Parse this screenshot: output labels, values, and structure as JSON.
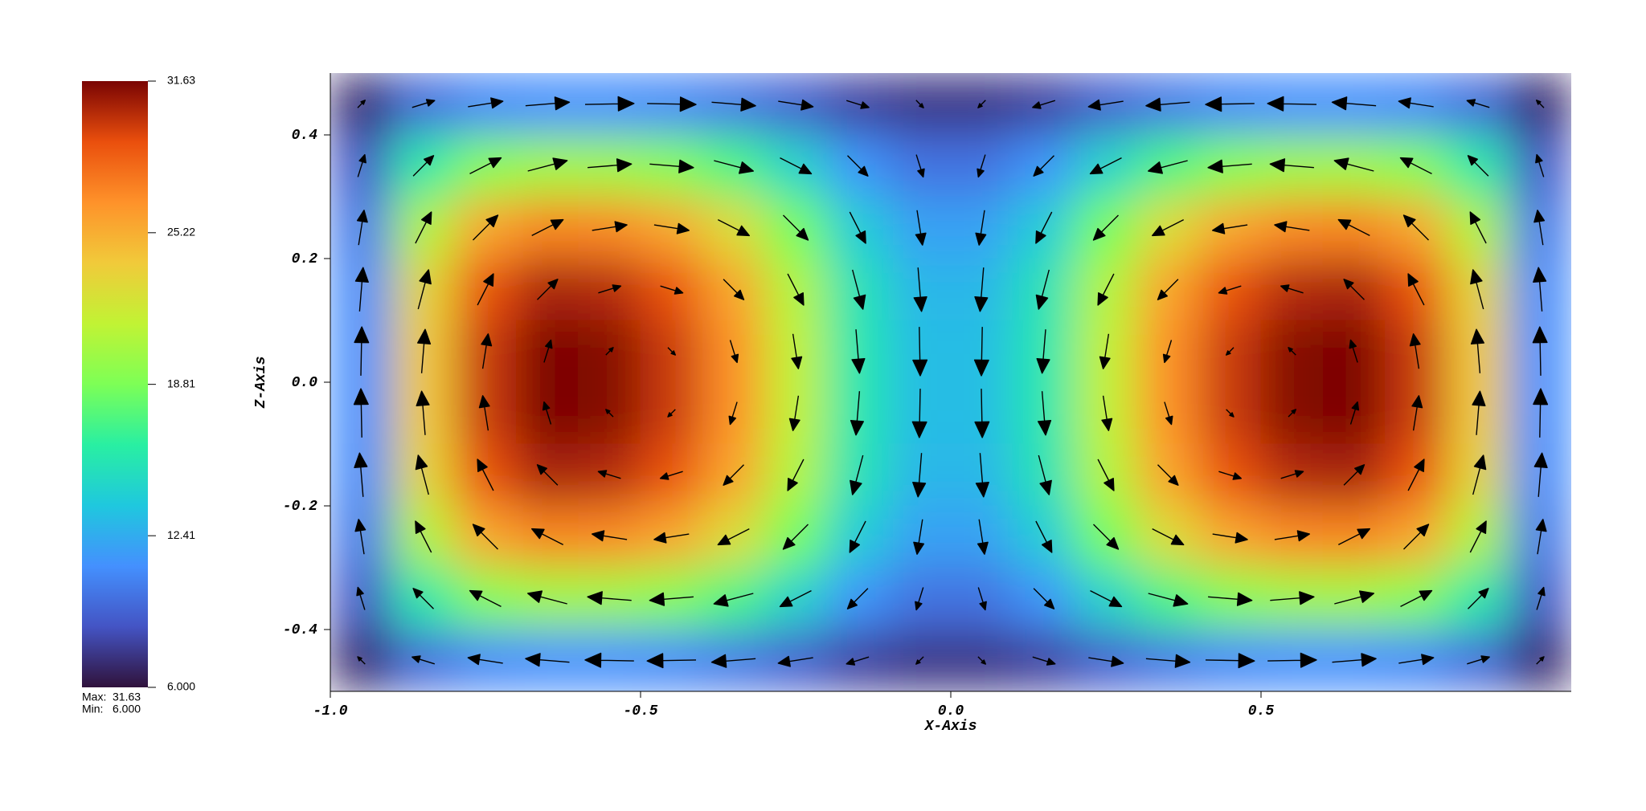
{
  "chart_data": {
    "type": "heatmap",
    "xlabel": "X-Axis",
    "ylabel": "Z-Axis",
    "xlim": [
      -1,
      1
    ],
    "ylim": [
      -0.5,
      0.5
    ],
    "xticks": [
      {
        "value": -1,
        "label": "-1.0"
      },
      -0.5,
      {
        "value": 0,
        "label": "0.0"
      },
      0.5
    ],
    "yticks": [
      0.4,
      0.2,
      {
        "value": 0,
        "label": "0.0"
      },
      -0.2,
      -0.4
    ],
    "x": [
      -0.95,
      -0.85,
      -0.75,
      -0.65,
      -0.55,
      -0.45,
      -0.35,
      -0.25,
      -0.15,
      -0.05,
      0.05,
      0.15,
      0.25,
      0.35,
      0.45,
      0.55,
      0.65,
      0.75,
      0.85,
      0.95
    ],
    "y": [
      0.45,
      0.35,
      0.25,
      0.15,
      0.05,
      -0.05,
      -0.15,
      -0.25,
      -0.35,
      -0.45
    ],
    "z": [
      [
        7.0,
        9.6,
        10.8,
        11.1,
        11.1,
        10.8,
        10.1,
        9.1,
        7.9,
        7.4,
        7.4,
        7.9,
        9.1,
        10.1,
        10.8,
        11.1,
        11.1,
        10.8,
        9.6,
        7.0
      ],
      [
        8.8,
        15.9,
        19.1,
        20.1,
        20.0,
        19.1,
        17.3,
        14.5,
        11.4,
        9.9,
        9.9,
        11.4,
        14.5,
        17.3,
        19.1,
        20.0,
        20.1,
        19.1,
        15.9,
        8.8
      ],
      [
        10.2,
        20.7,
        25.6,
        27.0,
        26.8,
        25.6,
        22.8,
        18.6,
        14.0,
        11.9,
        11.9,
        14.0,
        18.6,
        22.8,
        25.6,
        26.8,
        27.0,
        25.6,
        20.7,
        10.2
      ],
      [
        10.9,
        23.2,
        28.9,
        30.6,
        30.3,
        28.9,
        25.7,
        20.8,
        15.4,
        12.9,
        12.9,
        15.4,
        20.8,
        25.7,
        28.9,
        30.3,
        30.6,
        28.9,
        23.2,
        10.9
      ],
      [
        11.1,
        23.9,
        29.8,
        31.6,
        31.4,
        29.8,
        26.5,
        21.4,
        15.7,
        13.2,
        13.2,
        15.7,
        21.4,
        26.5,
        29.8,
        31.4,
        31.6,
        29.8,
        23.9,
        11.1
      ],
      [
        11.1,
        23.9,
        29.8,
        31.6,
        31.4,
        29.8,
        26.5,
        21.4,
        15.7,
        13.2,
        13.2,
        15.7,
        21.4,
        26.5,
        29.8,
        31.4,
        31.6,
        29.8,
        23.9,
        11.1
      ],
      [
        10.9,
        23.2,
        28.9,
        30.6,
        30.3,
        28.9,
        25.7,
        20.8,
        15.4,
        12.9,
        12.9,
        15.4,
        20.8,
        25.7,
        28.9,
        30.3,
        30.6,
        28.9,
        23.2,
        10.9
      ],
      [
        10.2,
        20.7,
        25.6,
        27.0,
        26.8,
        25.6,
        22.8,
        18.6,
        14.0,
        11.9,
        11.9,
        14.0,
        18.6,
        22.8,
        25.6,
        26.8,
        27.0,
        25.6,
        20.7,
        10.2
      ],
      [
        8.8,
        15.9,
        19.1,
        20.1,
        20.0,
        19.1,
        17.3,
        14.5,
        11.4,
        9.9,
        9.9,
        11.4,
        14.5,
        17.3,
        19.1,
        20.0,
        20.1,
        19.1,
        15.9,
        8.8
      ],
      [
        7.0,
        9.6,
        10.8,
        11.1,
        11.1,
        10.8,
        10.1,
        9.1,
        7.9,
        7.4,
        7.4,
        7.9,
        9.1,
        10.1,
        10.8,
        11.1,
        11.1,
        10.8,
        9.6,
        7.0
      ]
    ],
    "vectors": {
      "color": "#000000",
      "u": [
        [
          0.15,
          0.45,
          0.7,
          0.88,
          0.98,
          0.98,
          0.88,
          0.7,
          0.45,
          0.15,
          -0.15,
          -0.45,
          -0.7,
          -0.88,
          -0.98,
          -0.98,
          -0.88,
          -0.7,
          -0.45,
          -0.15
        ],
        [
          0.14,
          0.41,
          0.63,
          0.79,
          0.88,
          0.88,
          0.79,
          0.63,
          0.41,
          0.14,
          -0.14,
          -0.41,
          -0.63,
          -0.79,
          -0.88,
          -0.88,
          -0.79,
          -0.63,
          -0.41,
          -0.14
        ],
        [
          0.11,
          0.32,
          0.5,
          0.63,
          0.7,
          0.7,
          0.63,
          0.5,
          0.32,
          0.11,
          -0.11,
          -0.32,
          -0.5,
          -0.63,
          -0.7,
          -0.7,
          -0.63,
          -0.5,
          -0.32,
          -0.11
        ],
        [
          0.07,
          0.21,
          0.32,
          0.41,
          0.45,
          0.45,
          0.41,
          0.32,
          0.21,
          0.07,
          -0.07,
          -0.21,
          -0.32,
          -0.41,
          -0.45,
          -0.45,
          -0.41,
          -0.32,
          -0.21,
          -0.07
        ],
        [
          0.02,
          0.07,
          0.11,
          0.14,
          0.15,
          0.15,
          0.14,
          0.11,
          0.07,
          0.02,
          -0.02,
          -0.07,
          -0.11,
          -0.14,
          -0.15,
          -0.15,
          -0.14,
          -0.11,
          -0.07,
          -0.02
        ],
        [
          -0.02,
          -0.07,
          -0.11,
          -0.14,
          -0.15,
          -0.15,
          -0.14,
          -0.11,
          -0.07,
          -0.02,
          0.02,
          0.07,
          0.11,
          0.14,
          0.15,
          0.15,
          0.14,
          0.11,
          0.07,
          0.02
        ],
        [
          -0.07,
          -0.21,
          -0.32,
          -0.41,
          -0.45,
          -0.45,
          -0.41,
          -0.32,
          -0.21,
          -0.07,
          0.07,
          0.21,
          0.32,
          0.41,
          0.45,
          0.45,
          0.41,
          0.32,
          0.21,
          0.07
        ],
        [
          -0.11,
          -0.32,
          -0.5,
          -0.63,
          -0.7,
          -0.7,
          -0.63,
          -0.5,
          -0.32,
          -0.11,
          0.11,
          0.32,
          0.5,
          0.63,
          0.7,
          0.7,
          0.63,
          0.5,
          0.32,
          0.11
        ],
        [
          -0.14,
          -0.41,
          -0.63,
          -0.79,
          -0.88,
          -0.88,
          -0.79,
          -0.63,
          -0.41,
          -0.14,
          0.14,
          0.41,
          0.63,
          0.79,
          0.88,
          0.88,
          0.79,
          0.63,
          0.41,
          0.14
        ],
        [
          -0.15,
          -0.45,
          -0.7,
          -0.88,
          -0.98,
          -0.98,
          -0.88,
          -0.7,
          -0.45,
          -0.15,
          0.15,
          0.45,
          0.7,
          0.88,
          0.98,
          0.98,
          0.88,
          0.7,
          0.45,
          0.15
        ]
      ],
      "w": [
        [
          0.15,
          0.14,
          0.11,
          0.07,
          0.02,
          -0.02,
          -0.07,
          -0.11,
          -0.14,
          -0.15,
          -0.15,
          -0.14,
          -0.11,
          -0.07,
          -0.02,
          0.02,
          0.07,
          0.11,
          0.14,
          0.15
        ],
        [
          0.45,
          0.41,
          0.32,
          0.21,
          0.07,
          -0.07,
          -0.21,
          -0.32,
          -0.41,
          -0.45,
          -0.45,
          -0.41,
          -0.32,
          -0.21,
          -0.07,
          0.07,
          0.21,
          0.32,
          0.41,
          0.45
        ],
        [
          0.7,
          0.63,
          0.5,
          0.32,
          0.11,
          -0.11,
          -0.32,
          -0.5,
          -0.63,
          -0.7,
          -0.7,
          -0.63,
          -0.5,
          -0.32,
          -0.11,
          0.11,
          0.32,
          0.5,
          0.63,
          0.7
        ],
        [
          0.88,
          0.79,
          0.63,
          0.41,
          0.14,
          -0.14,
          -0.41,
          -0.63,
          -0.79,
          -0.88,
          -0.88,
          -0.79,
          -0.63,
          -0.41,
          -0.14,
          0.14,
          0.41,
          0.63,
          0.79,
          0.88
        ],
        [
          0.98,
          0.88,
          0.7,
          0.45,
          0.15,
          -0.15,
          -0.45,
          -0.7,
          -0.88,
          -0.98,
          -0.98,
          -0.88,
          -0.7,
          -0.45,
          -0.15,
          0.15,
          0.45,
          0.7,
          0.88,
          0.98
        ],
        [
          0.98,
          0.88,
          0.7,
          0.45,
          0.15,
          -0.15,
          -0.45,
          -0.7,
          -0.88,
          -0.98,
          -0.98,
          -0.88,
          -0.7,
          -0.45,
          -0.15,
          0.15,
          0.45,
          0.7,
          0.88,
          0.98
        ],
        [
          0.88,
          0.79,
          0.63,
          0.41,
          0.14,
          -0.14,
          -0.41,
          -0.63,
          -0.79,
          -0.88,
          -0.88,
          -0.79,
          -0.63,
          -0.41,
          -0.14,
          0.14,
          0.41,
          0.63,
          0.79,
          0.88
        ],
        [
          0.7,
          0.63,
          0.5,
          0.32,
          0.11,
          -0.11,
          -0.32,
          -0.5,
          -0.63,
          -0.7,
          -0.7,
          -0.63,
          -0.5,
          -0.32,
          -0.11,
          0.11,
          0.32,
          0.5,
          0.63,
          0.7
        ],
        [
          0.45,
          0.41,
          0.32,
          0.21,
          0.07,
          -0.07,
          -0.21,
          -0.32,
          -0.41,
          -0.45,
          -0.45,
          -0.41,
          -0.32,
          -0.21,
          -0.07,
          0.07,
          0.21,
          0.32,
          0.41,
          0.45
        ],
        [
          0.15,
          0.14,
          0.11,
          0.07,
          0.02,
          -0.02,
          -0.07,
          -0.11,
          -0.14,
          -0.15,
          -0.15,
          -0.14,
          -0.11,
          -0.07,
          -0.02,
          0.02,
          0.07,
          0.11,
          0.14,
          0.15
        ]
      ]
    },
    "colorbar": {
      "colormap": [
        "#30123b",
        "#4454c4",
        "#4490fe",
        "#1fc8de",
        "#29efa2",
        "#7dff56",
        "#c1f334",
        "#f1ca3a",
        "#fe922a",
        "#ea4f0d",
        "#7a0403"
      ],
      "zlim": [
        6,
        31.63
      ],
      "ticks": [
        31.63,
        25.22,
        18.81,
        12.41,
        {
          "value": 6,
          "label": "6.000"
        }
      ],
      "max_label": "Max:",
      "max": 31.63,
      "min_label": "Min:",
      "min": {
        "value": 6,
        "label": "6.000"
      }
    }
  }
}
